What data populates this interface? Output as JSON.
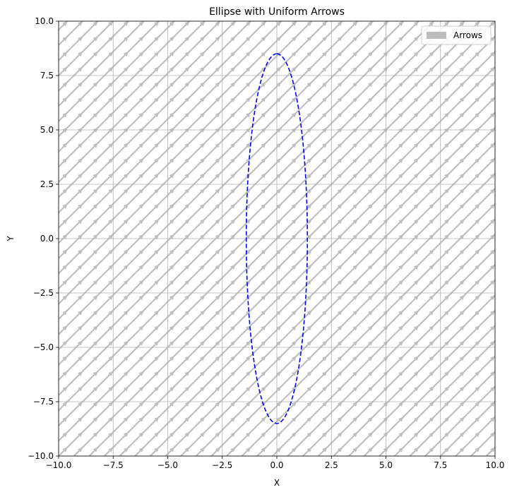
{
  "chart_data": {
    "type": "quiver",
    "title": "Ellipse with Uniform Arrows",
    "xlabel": "X",
    "ylabel": "Y",
    "xlim": [
      -10,
      10
    ],
    "ylim": [
      -10,
      10
    ],
    "xticks": [
      -10.0,
      -7.5,
      -5.0,
      -2.5,
      0.0,
      2.5,
      5.0,
      7.5,
      10.0
    ],
    "yticks": [
      -10.0,
      -7.5,
      -5.0,
      -2.5,
      0.0,
      2.5,
      5.0,
      7.5,
      10.0
    ],
    "xtick_labels": [
      "−10.0",
      "−7.5",
      "−5.0",
      "−2.5",
      "0.0",
      "2.5",
      "5.0",
      "7.5",
      "10.0"
    ],
    "ytick_labels": [
      "−10.0",
      "−7.5",
      "−5.0",
      "−2.5",
      "0.0",
      "2.5",
      "5.0",
      "7.5",
      "10.0"
    ],
    "grid": true,
    "legend": {
      "position": "top-right",
      "entries": [
        {
          "label": "Arrows",
          "color": "#bdbdbd"
        }
      ]
    },
    "ellipse": {
      "center": [
        0,
        0
      ],
      "semi_axis_x": 1.4,
      "semi_axis_y": 8.5,
      "color": "#0000ff",
      "linestyle": "dashed"
    },
    "arrows": {
      "color": "#aaaaaa",
      "direction": [
        1,
        1
      ],
      "grid_spacing": 0.7,
      "length": 1.0,
      "uniform": true
    }
  }
}
